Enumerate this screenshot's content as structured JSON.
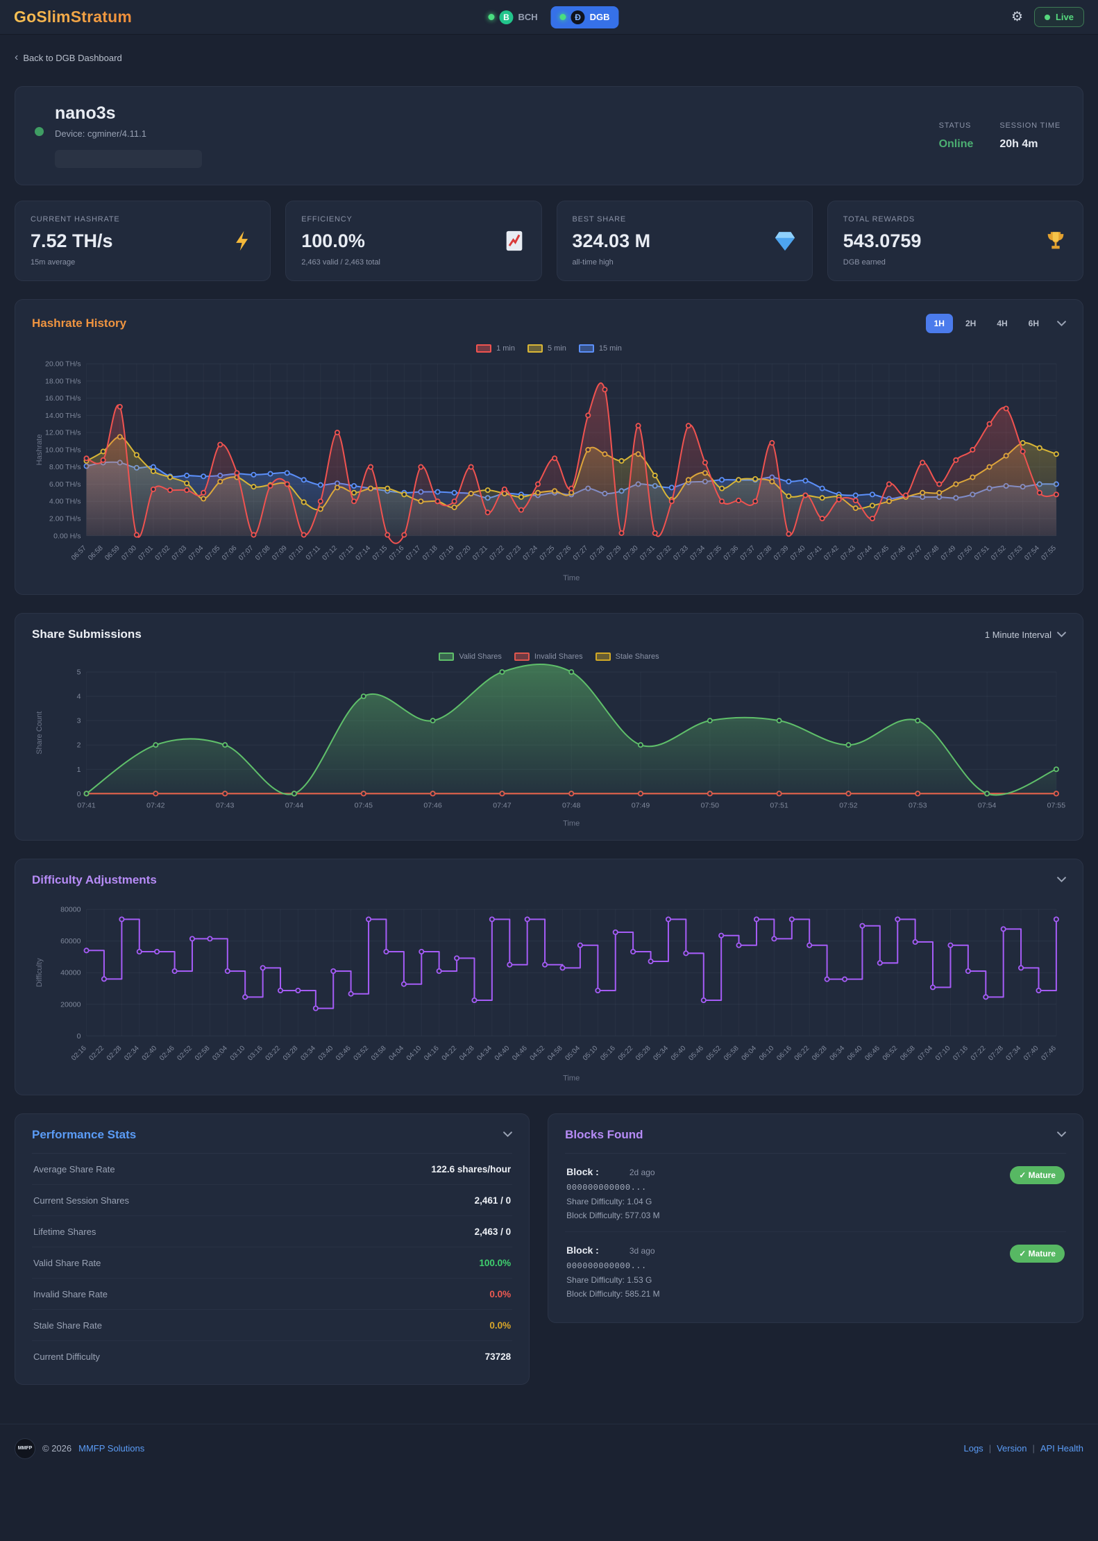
{
  "header": {
    "logo": "GoSlimStratum",
    "coins": [
      {
        "label": "BCH",
        "symbol": "B"
      },
      {
        "label": "DGB",
        "symbol": "Ð"
      }
    ],
    "live_label": "Live"
  },
  "back_link": "Back to DGB Dashboard",
  "worker": {
    "name": "nano3s",
    "device": "Device: cgminer/4.11.1",
    "status_label": "STATUS",
    "status_value": "Online",
    "session_label": "SESSION TIME",
    "session_value": "20h 4m"
  },
  "stat_cards": [
    {
      "label": "CURRENT HASHRATE",
      "value": "7.52 TH/s",
      "sub": "15m average",
      "icon": "lightning"
    },
    {
      "label": "EFFICIENCY",
      "value": "100.0%",
      "sub": "2,463 valid / 2,463 total",
      "icon": "chart-up"
    },
    {
      "label": "BEST SHARE",
      "value": "324.03 M",
      "sub": "all-time high",
      "icon": "diamond"
    },
    {
      "label": "TOTAL REWARDS",
      "value": "543.0759",
      "sub": "DGB earned",
      "icon": "trophy"
    }
  ],
  "hashrate_section": {
    "title": "Hashrate History",
    "ranges": [
      "1H",
      "2H",
      "4H",
      "6H"
    ],
    "active_range": "1H"
  },
  "share_section": {
    "title": "Share Submissions",
    "interval": "1 Minute Interval"
  },
  "difficulty_section": {
    "title": "Difficulty Adjustments"
  },
  "performance": {
    "title": "Performance Stats",
    "rows": [
      {
        "label": "Average Share Rate",
        "value": "122.6 shares/hour"
      },
      {
        "label": "Current Session Shares",
        "value": "2,461 / 0"
      },
      {
        "label": "Lifetime Shares",
        "value": "2,463 / 0"
      },
      {
        "label": "Valid Share Rate",
        "value": "100.0%"
      },
      {
        "label": "Invalid Share Rate",
        "value": "0.0%"
      },
      {
        "label": "Stale Share Rate",
        "value": "0.0%"
      },
      {
        "label": "Current Difficulty",
        "value": "73728"
      }
    ]
  },
  "blocks": {
    "title": "Blocks Found",
    "items": [
      {
        "name": "Block :",
        "age": "2d ago",
        "hash": "000000000000...",
        "share_difficulty": "Share Difficulty: 1.04 G",
        "block_difficulty": "Block Difficulty: 577.03 M",
        "badge": "✓ Mature"
      },
      {
        "name": "Block :",
        "age": "3d ago",
        "hash": "000000000000...",
        "share_difficulty": "Share Difficulty: 1.53 G",
        "block_difficulty": "Block Difficulty: 585.21 M",
        "badge": "✓ Mature"
      }
    ]
  },
  "footer": {
    "logo_text": "MMFP",
    "copyright": "© 2026",
    "company": "MMFP Solutions",
    "links": [
      "Logs",
      "Version",
      "API Health"
    ]
  },
  "chart_data": [
    {
      "id": "hashrate",
      "type": "line",
      "title": "Hashrate History",
      "xlabel": "Time",
      "ylabel": "Hashrate",
      "ylim": [
        0,
        20
      ],
      "ytick_step": 2,
      "ytick_format": "hashrate",
      "rotate_x": true,
      "grid": true,
      "legend_position": "top-center",
      "categories": [
        "06:57",
        "06:58",
        "06:59",
        "07:00",
        "07:01",
        "07:02",
        "07:03",
        "07:04",
        "07:05",
        "07:06",
        "07:07",
        "07:08",
        "07:09",
        "07:10",
        "07:11",
        "07:12",
        "07:13",
        "07:14",
        "07:15",
        "07:16",
        "07:17",
        "07:18",
        "07:19",
        "07:20",
        "07:21",
        "07:22",
        "07:23",
        "07:24",
        "07:25",
        "07:26",
        "07:27",
        "07:28",
        "07:29",
        "07:30",
        "07:31",
        "07:32",
        "07:33",
        "07:34",
        "07:35",
        "07:36",
        "07:37",
        "07:38",
        "07:39",
        "07:40",
        "07:41",
        "07:42",
        "07:43",
        "07:44",
        "07:45",
        "07:46",
        "07:47",
        "07:48",
        "07:49",
        "07:50",
        "07:51",
        "07:52",
        "07:53",
        "07:54",
        "07:55"
      ],
      "series": [
        {
          "name": "1 min",
          "color": "#ef5350",
          "values": [
            9,
            8.8,
            15,
            0.1,
            5.4,
            5.3,
            5.3,
            5,
            10.6,
            7.3,
            0.1,
            5.8,
            6,
            0.1,
            4,
            12,
            4,
            8,
            0.1,
            0.1,
            8,
            4,
            4,
            8,
            2.7,
            5.4,
            3,
            6,
            9,
            5.5,
            14,
            17,
            0.3,
            12.8,
            0.3,
            4,
            12.8,
            8.5,
            4,
            4.1,
            4,
            10.8,
            0.2,
            4.7,
            2,
            4.2,
            4.1,
            2,
            6,
            4.7,
            8.5,
            6,
            8.8,
            10,
            13,
            14.8,
            9.8,
            5,
            4.8
          ]
        },
        {
          "name": "5 min",
          "color": "#d9b636",
          "values": [
            8.7,
            9.8,
            11.5,
            9.4,
            7.5,
            6.8,
            6.1,
            4.3,
            6.3,
            6.8,
            5.7,
            5.9,
            6,
            3.9,
            3.1,
            5.6,
            5,
            5.5,
            5.5,
            4.8,
            4,
            4,
            3.3,
            4.9,
            5.3,
            4.9,
            4.5,
            5,
            5.2,
            5,
            10,
            9.5,
            8.7,
            9.5,
            7,
            4.2,
            6.5,
            7.3,
            5.5,
            6.5,
            6.6,
            6.3,
            4.6,
            4.7,
            4.4,
            4.5,
            3.2,
            3.5,
            4,
            4.5,
            5,
            5,
            6,
            6.8,
            8,
            9.3,
            10.8,
            10.2,
            9.5
          ]
        },
        {
          "name": "15 min",
          "color": "#5b8ff9",
          "values": [
            8.1,
            8.5,
            8.5,
            7.9,
            8,
            6.9,
            7,
            6.9,
            7,
            7.2,
            7.1,
            7.2,
            7.3,
            6.5,
            5.9,
            6.1,
            5.8,
            5.5,
            5.2,
            5,
            5.1,
            5.1,
            5,
            4.9,
            4.4,
            4.9,
            4.8,
            4.7,
            5,
            4.8,
            5.5,
            4.9,
            5.2,
            6,
            5.8,
            5.6,
            6.2,
            6.3,
            6.5,
            6.5,
            6.5,
            6.8,
            6.3,
            6.4,
            5.5,
            4.8,
            4.7,
            4.8,
            4.3,
            4.6,
            4.5,
            4.5,
            4.4,
            4.8,
            5.5,
            5.8,
            5.7,
            6,
            6
          ]
        }
      ]
    },
    {
      "id": "shares",
      "type": "area",
      "title": "Share Submissions",
      "xlabel": "Time",
      "ylabel": "Share Count",
      "ylim": [
        0,
        5
      ],
      "ytick_step": 1,
      "ytick_format": "plain",
      "rotate_x": false,
      "grid": true,
      "legend_position": "top-center",
      "categories": [
        "07:41",
        "07:42",
        "07:43",
        "07:44",
        "07:45",
        "07:46",
        "07:47",
        "07:48",
        "07:49",
        "07:50",
        "07:51",
        "07:52",
        "07:53",
        "07:54",
        "07:55"
      ],
      "series": [
        {
          "name": "Valid Shares",
          "color": "#5fbf6a",
          "fill_top": 0.5,
          "values": [
            0,
            2,
            2,
            0,
            4,
            3,
            5,
            5,
            2,
            3,
            3,
            2,
            3,
            0,
            1
          ]
        },
        {
          "name": "Invalid Shares",
          "color": "#e0564d",
          "no_fill": true,
          "values": [
            0,
            0,
            0,
            0,
            0,
            0,
            0,
            0,
            0,
            0,
            0,
            0,
            0,
            0,
            0
          ]
        },
        {
          "name": "Stale Shares",
          "color": "#d2a926",
          "no_fill": true,
          "values": [
            0,
            0,
            0,
            0,
            0,
            0,
            0,
            0,
            0,
            0,
            0,
            0,
            0,
            0,
            0
          ]
        }
      ]
    },
    {
      "id": "difficulty",
      "type": "step",
      "title": "Difficulty Adjustments",
      "xlabel": "Time",
      "ylabel": "Difficulty",
      "ylim": [
        0,
        80000
      ],
      "ytick_step": 20000,
      "ytick_format": "plain",
      "rotate_x": true,
      "grid": true,
      "legend_position": "none",
      "categories": [
        "02:16",
        "02:22",
        "02:28",
        "02:34",
        "02:40",
        "02:46",
        "02:52",
        "02:58",
        "03:04",
        "03:10",
        "03:16",
        "03:22",
        "03:28",
        "03:34",
        "03:40",
        "03:46",
        "03:52",
        "03:58",
        "04:04",
        "04:10",
        "04:16",
        "04:22",
        "04:28",
        "04:34",
        "04:40",
        "04:46",
        "04:52",
        "04:58",
        "05:04",
        "05:10",
        "05:16",
        "05:22",
        "05:28",
        "05:34",
        "05:40",
        "05:46",
        "05:52",
        "05:58",
        "06:04",
        "06:10",
        "06:16",
        "06:22",
        "06:28",
        "06:34",
        "06:40",
        "06:46",
        "06:52",
        "06:58",
        "07:04",
        "07:10",
        "07:16",
        "07:22",
        "07:28",
        "07:34",
        "07:40",
        "07:46"
      ],
      "series": [
        {
          "name": "Difficulty",
          "color": "#a55cf6",
          "no_fill": true,
          "values": [
            54000,
            36000,
            73728,
            53248,
            53248,
            40960,
            61440,
            61440,
            40960,
            24576,
            43008,
            28672,
            28672,
            17408,
            40960,
            26624,
            73728,
            53248,
            32768,
            53248,
            40960,
            49152,
            22528,
            73728,
            45056,
            73728,
            45056,
            43008,
            57344,
            28672,
            65536,
            53248,
            47104,
            73728,
            52224,
            22528,
            63488,
            57344,
            73728,
            61440,
            73728,
            57344,
            35840,
            35840,
            69632,
            46080,
            73728,
            59392,
            30720,
            57344,
            40960,
            24576,
            67584,
            43008,
            28672,
            73728
          ]
        }
      ]
    }
  ]
}
